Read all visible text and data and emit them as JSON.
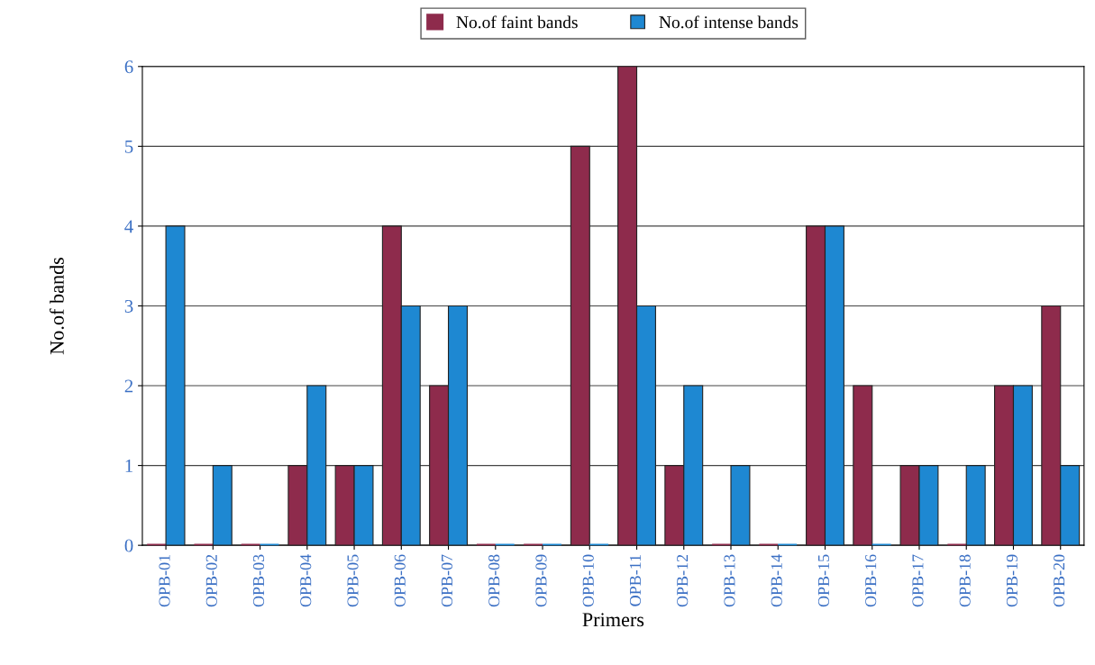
{
  "chart_data": {
    "type": "bar",
    "xlabel": "Primers",
    "ylabel": "No.of bands",
    "categories": [
      "OPB-01",
      "OPB-02",
      "OPB-03",
      "OPB-04",
      "OPB-05",
      "OPB-06",
      "OPB-07",
      "OPB-08",
      "OPB-09",
      "OPB-10",
      "OPB-11",
      "OPB-12",
      "OPB-13",
      "OPB-14",
      "OPB-15",
      "OPB-16",
      "OPB-17",
      "OPB-18",
      "OPB-19",
      "OPB-20"
    ],
    "series": [
      {
        "name": "No.of faint bands",
        "color": "#8e2b4c",
        "values": [
          0,
          0,
          0,
          1,
          1,
          4,
          2,
          0,
          0,
          5,
          6,
          1,
          0,
          0,
          4,
          2,
          1,
          0,
          2,
          3
        ]
      },
      {
        "name": "No.of intense bands",
        "color": "#1e88d2",
        "values": [
          4,
          1,
          0,
          2,
          1,
          3,
          3,
          0,
          0,
          0,
          3,
          2,
          1,
          0,
          4,
          0,
          1,
          1,
          2,
          1
        ]
      }
    ],
    "ylim": [
      0,
      6
    ],
    "yticks": [
      0,
      1,
      2,
      3,
      4,
      5,
      6
    ],
    "grid": "y",
    "legend": "top"
  }
}
